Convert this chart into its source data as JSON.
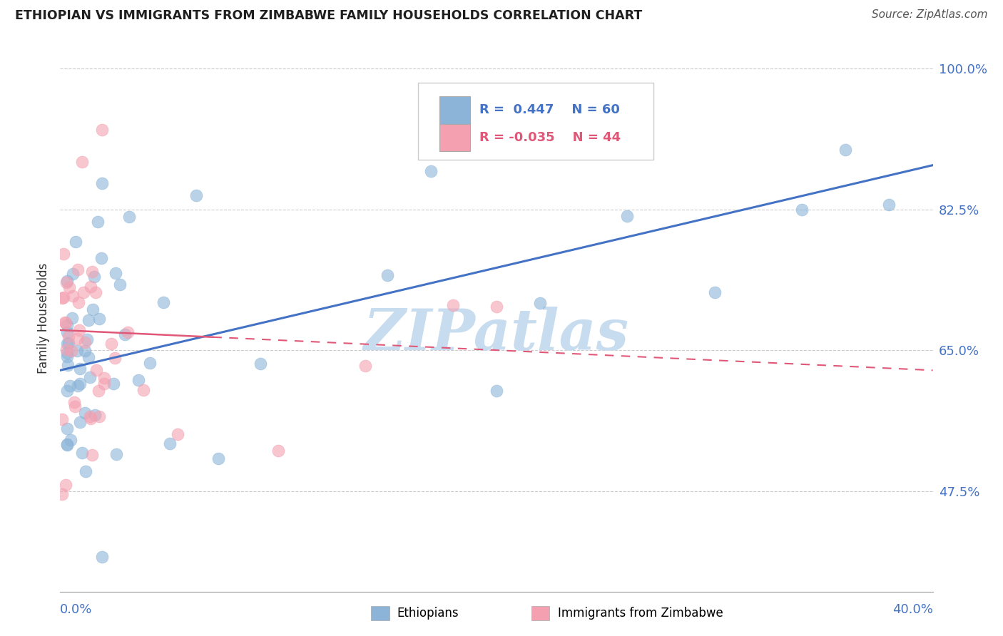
{
  "title": "ETHIOPIAN VS IMMIGRANTS FROM ZIMBABWE FAMILY HOUSEHOLDS CORRELATION CHART",
  "source": "Source: ZipAtlas.com",
  "ylabel": "Family Households",
  "y_ticks": [
    47.5,
    65.0,
    82.5,
    100.0
  ],
  "x_min": 0.0,
  "x_max": 40.0,
  "y_min": 35.0,
  "y_max": 103.0,
  "blue_color": "#8BB4D8",
  "pink_color": "#F4A0B0",
  "trend_blue": "#4472C4",
  "trend_pink": "#E05878",
  "watermark_color": "#C8DCF0",
  "title_color": "#1F1F1F",
  "source_color": "#555555",
  "tick_color": "#4472C4",
  "grid_color": "#CCCCCC",
  "legend_r1": "R =  0.447",
  "legend_n1": "N = 60",
  "legend_r2": "R = -0.035",
  "legend_n2": "N = 44",
  "eth_trend_x0": 0.0,
  "eth_trend_y0": 62.5,
  "eth_trend_x1": 40.0,
  "eth_trend_y1": 88.0,
  "zim_trend_x0": 0.0,
  "zim_trend_y0": 67.5,
  "zim_trend_x1": 40.0,
  "zim_trend_y1": 62.5,
  "zim_solid_end": 7.0
}
